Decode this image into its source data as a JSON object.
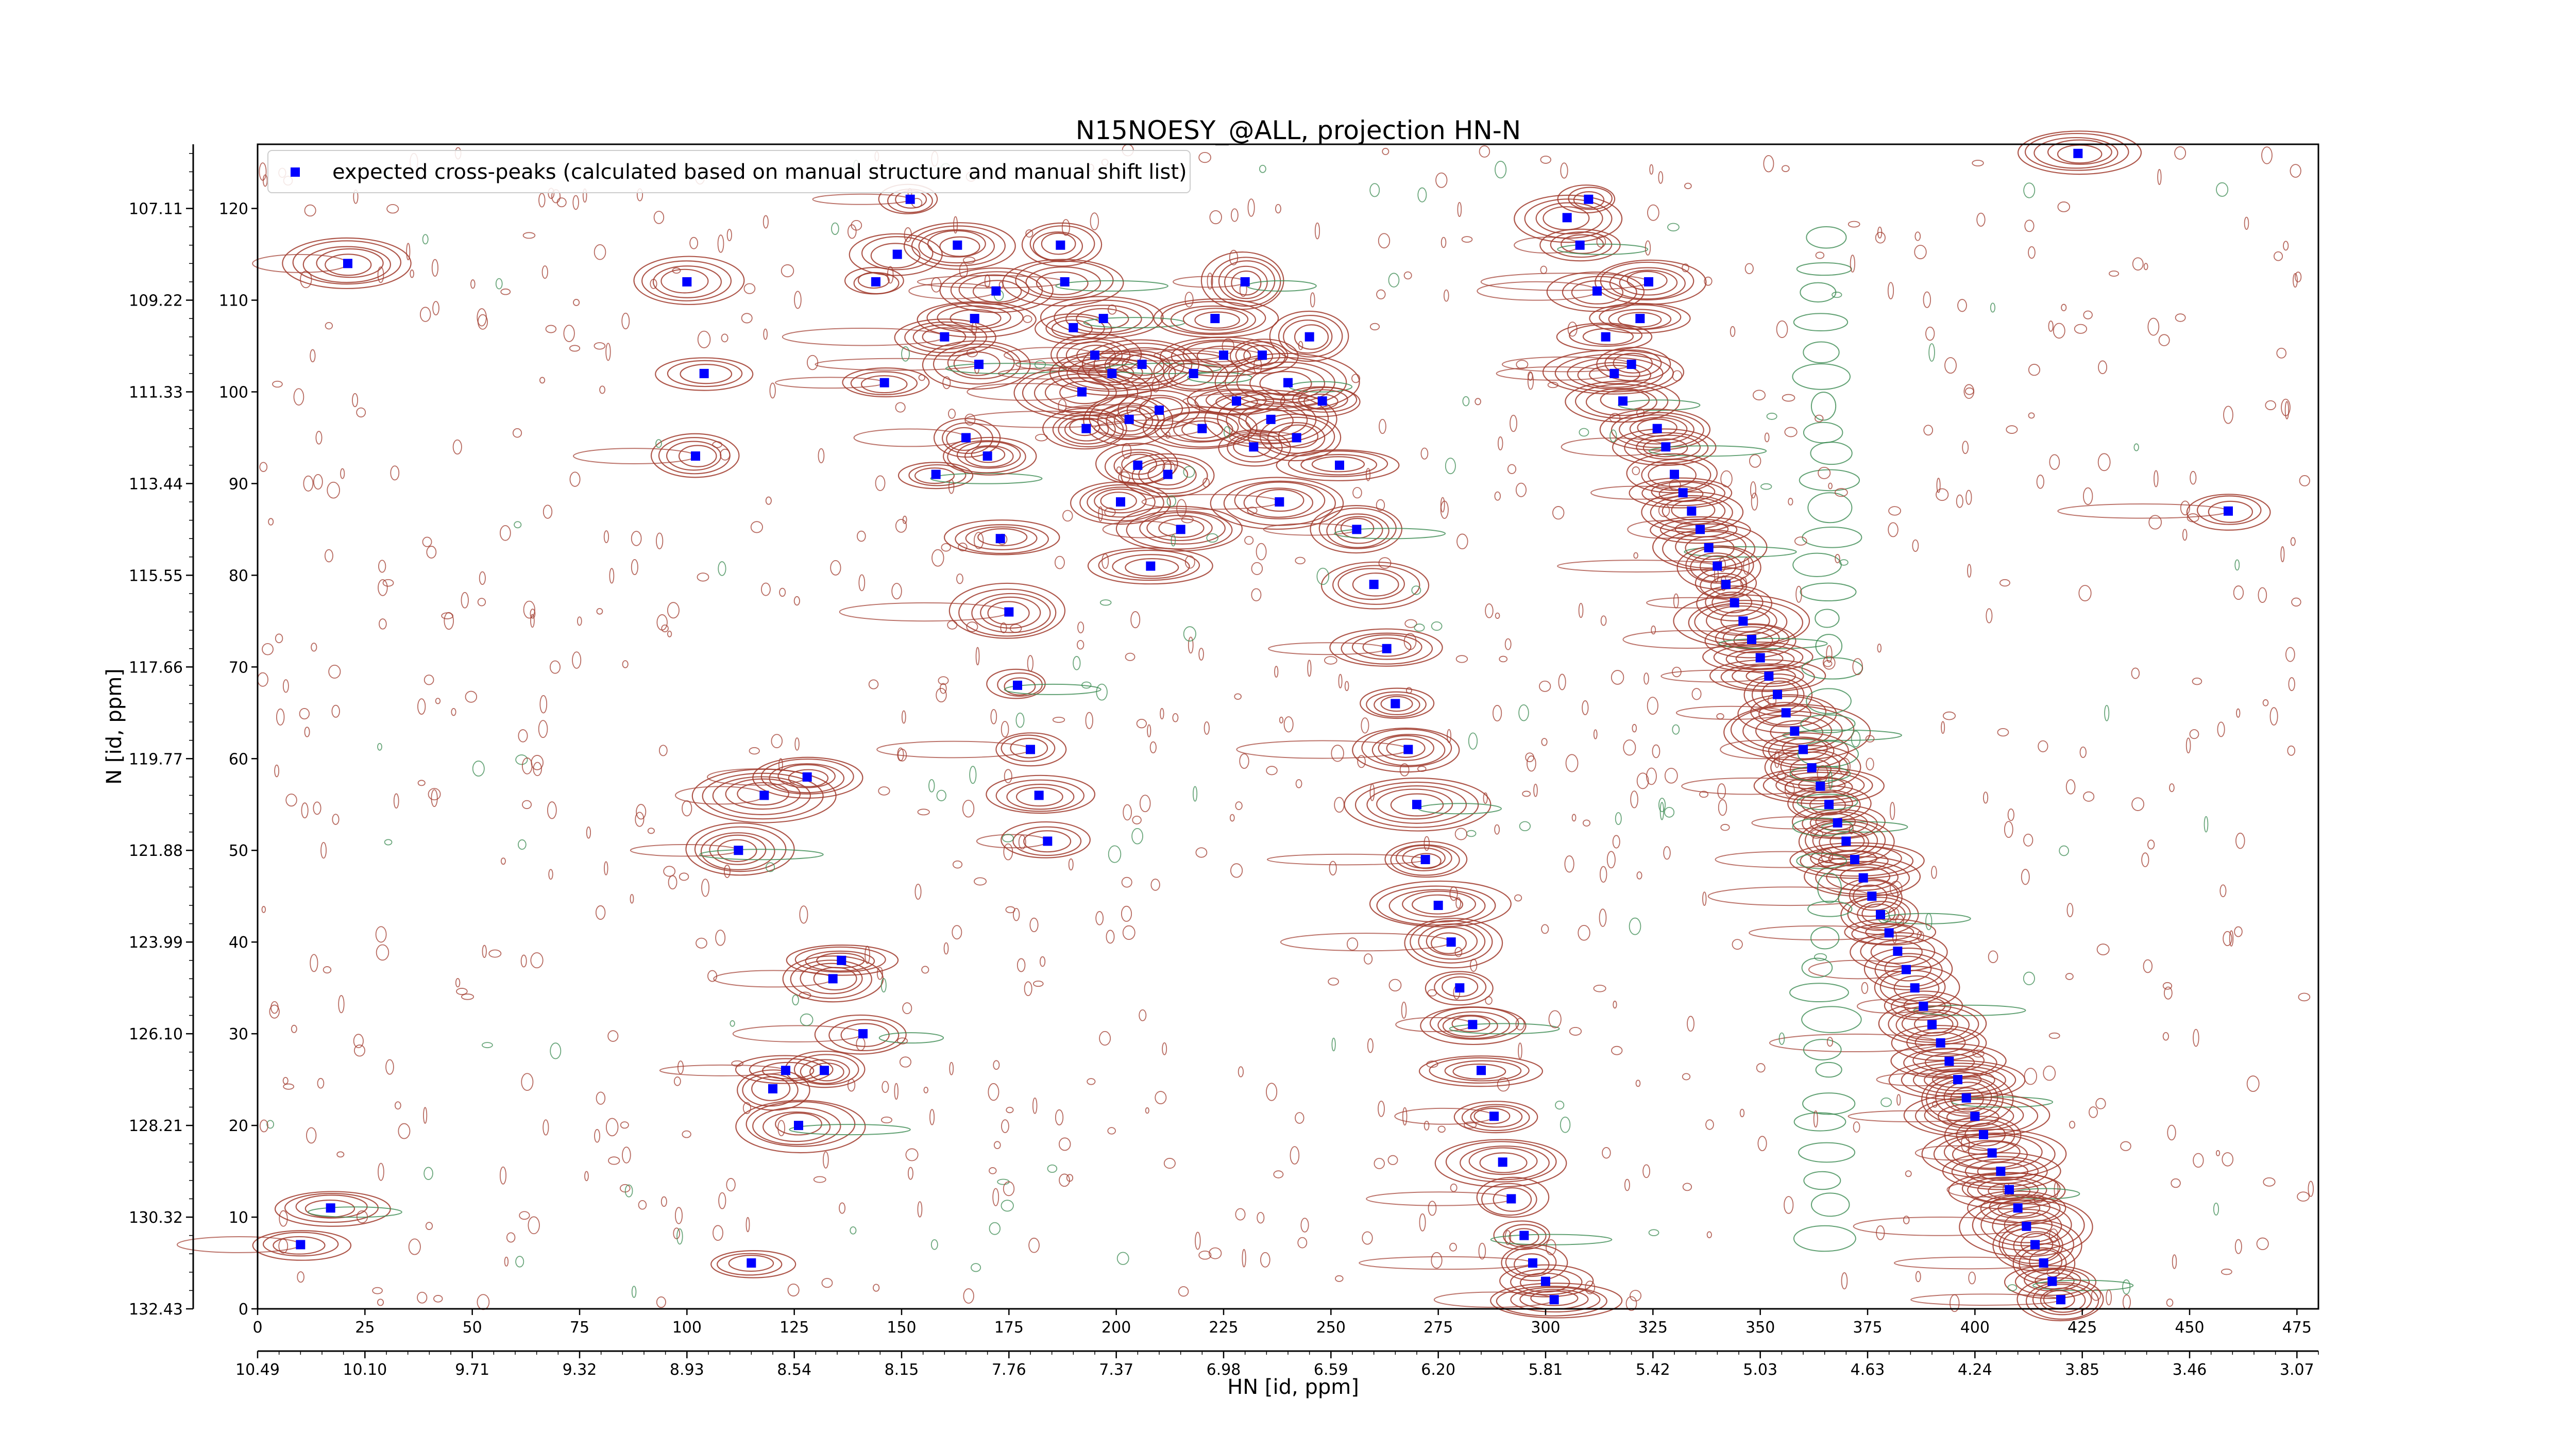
{
  "chart_data": {
    "type": "scatter",
    "title": "N15NOESY_@ALL, projection HN-N",
    "xlabel": "HN [id, ppm]",
    "ylabel": "N [id, ppm]",
    "x_index_range": [
      0,
      480
    ],
    "y_index_range": [
      0,
      127
    ],
    "x_ticks_index": [
      "0",
      "25",
      "50",
      "75",
      "100",
      "125",
      "150",
      "175",
      "200",
      "225",
      "250",
      "275",
      "300",
      "325",
      "350",
      "375",
      "400",
      "425",
      "450",
      "475"
    ],
    "x_ticks_ppm": [
      "10.49",
      "10.10",
      "9.71",
      "9.32",
      "8.93",
      "8.54",
      "8.15",
      "7.76",
      "7.37",
      "6.98",
      "6.59",
      "6.20",
      "5.81",
      "5.42",
      "5.03",
      "4.63",
      "4.24",
      "3.85",
      "3.46",
      "3.07"
    ],
    "y_ticks_index": [
      "0",
      "10",
      "20",
      "30",
      "40",
      "50",
      "60",
      "70",
      "80",
      "90",
      "100",
      "110",
      "120"
    ],
    "y_ticks_ppm": [
      "132.43",
      "130.32",
      "128.21",
      "126.10",
      "123.99",
      "121.88",
      "119.77",
      "117.66",
      "115.55",
      "113.44",
      "111.33",
      "109.22",
      "107.11"
    ],
    "legend": {
      "label": "expected cross-peaks (calculated based on manual structure and manual shift list)",
      "position": "top-left"
    },
    "colors": {
      "positive_contour": "#a0392c",
      "negative_contour": "#3a8a50",
      "marker": "#0000ff"
    },
    "series": [
      {
        "name": "expected cross-peaks (calculated based on manual structure and manual shift list)",
        "marker": "square",
        "points": [
          [
            10,
            7
          ],
          [
            17,
            11
          ],
          [
            21,
            114
          ],
          [
            100,
            112
          ],
          [
            102,
            93
          ],
          [
            104,
            102
          ],
          [
            112,
            50
          ],
          [
            115,
            5
          ],
          [
            118,
            56
          ],
          [
            120,
            24
          ],
          [
            123,
            26
          ],
          [
            126,
            20
          ],
          [
            128,
            58
          ],
          [
            132,
            26
          ],
          [
            134,
            36
          ],
          [
            136,
            38
          ],
          [
            141,
            30
          ],
          [
            144,
            112
          ],
          [
            146,
            101
          ],
          [
            149,
            115
          ],
          [
            152,
            121
          ],
          [
            158,
            91
          ],
          [
            160,
            106
          ],
          [
            163,
            116
          ],
          [
            165,
            95
          ],
          [
            167,
            108
          ],
          [
            168,
            103
          ],
          [
            170,
            93
          ],
          [
            172,
            111
          ],
          [
            173,
            84
          ],
          [
            175,
            76
          ],
          [
            177,
            68
          ],
          [
            180,
            61
          ],
          [
            182,
            56
          ],
          [
            184,
            51
          ],
          [
            187,
            116
          ],
          [
            188,
            112
          ],
          [
            190,
            107
          ],
          [
            192,
            100
          ],
          [
            193,
            96
          ],
          [
            195,
            104
          ],
          [
            197,
            108
          ],
          [
            199,
            102
          ],
          [
            201,
            88
          ],
          [
            203,
            97
          ],
          [
            205,
            92
          ],
          [
            206,
            103
          ],
          [
            208,
            81
          ],
          [
            210,
            98
          ],
          [
            212,
            91
          ],
          [
            215,
            85
          ],
          [
            218,
            102
          ],
          [
            220,
            96
          ],
          [
            223,
            108
          ],
          [
            225,
            104
          ],
          [
            228,
            99
          ],
          [
            230,
            112
          ],
          [
            232,
            94
          ],
          [
            234,
            104
          ],
          [
            236,
            97
          ],
          [
            238,
            88
          ],
          [
            240,
            101
          ],
          [
            242,
            95
          ],
          [
            245,
            106
          ],
          [
            248,
            99
          ],
          [
            252,
            92
          ],
          [
            256,
            85
          ],
          [
            260,
            79
          ],
          [
            263,
            72
          ],
          [
            265,
            66
          ],
          [
            268,
            61
          ],
          [
            270,
            55
          ],
          [
            272,
            49
          ],
          [
            275,
            44
          ],
          [
            278,
            40
          ],
          [
            280,
            35
          ],
          [
            283,
            31
          ],
          [
            285,
            26
          ],
          [
            288,
            21
          ],
          [
            290,
            16
          ],
          [
            292,
            12
          ],
          [
            295,
            8
          ],
          [
            297,
            5
          ],
          [
            300,
            3
          ],
          [
            302,
            1
          ],
          [
            305,
            119
          ],
          [
            308,
            116
          ],
          [
            310,
            121
          ],
          [
            312,
            111
          ],
          [
            314,
            106
          ],
          [
            316,
            102
          ],
          [
            318,
            99
          ],
          [
            320,
            103
          ],
          [
            322,
            108
          ],
          [
            324,
            112
          ],
          [
            326,
            96
          ],
          [
            328,
            94
          ],
          [
            330,
            91
          ],
          [
            332,
            89
          ],
          [
            334,
            87
          ],
          [
            336,
            85
          ],
          [
            338,
            83
          ],
          [
            340,
            81
          ],
          [
            342,
            79
          ],
          [
            344,
            77
          ],
          [
            346,
            75
          ],
          [
            348,
            73
          ],
          [
            350,
            71
          ],
          [
            352,
            69
          ],
          [
            354,
            67
          ],
          [
            356,
            65
          ],
          [
            358,
            63
          ],
          [
            360,
            61
          ],
          [
            362,
            59
          ],
          [
            364,
            57
          ],
          [
            366,
            55
          ],
          [
            368,
            53
          ],
          [
            370,
            51
          ],
          [
            372,
            49
          ],
          [
            374,
            47
          ],
          [
            376,
            45
          ],
          [
            378,
            43
          ],
          [
            380,
            41
          ],
          [
            382,
            39
          ],
          [
            384,
            37
          ],
          [
            386,
            35
          ],
          [
            388,
            33
          ],
          [
            390,
            31
          ],
          [
            392,
            29
          ],
          [
            394,
            27
          ],
          [
            396,
            25
          ],
          [
            398,
            23
          ],
          [
            400,
            21
          ],
          [
            402,
            19
          ],
          [
            404,
            17
          ],
          [
            406,
            15
          ],
          [
            408,
            13
          ],
          [
            410,
            11
          ],
          [
            412,
            9
          ],
          [
            414,
            7
          ],
          [
            416,
            5
          ],
          [
            418,
            3
          ],
          [
            420,
            1
          ],
          [
            424,
            126
          ],
          [
            459,
            87
          ]
        ]
      }
    ]
  }
}
